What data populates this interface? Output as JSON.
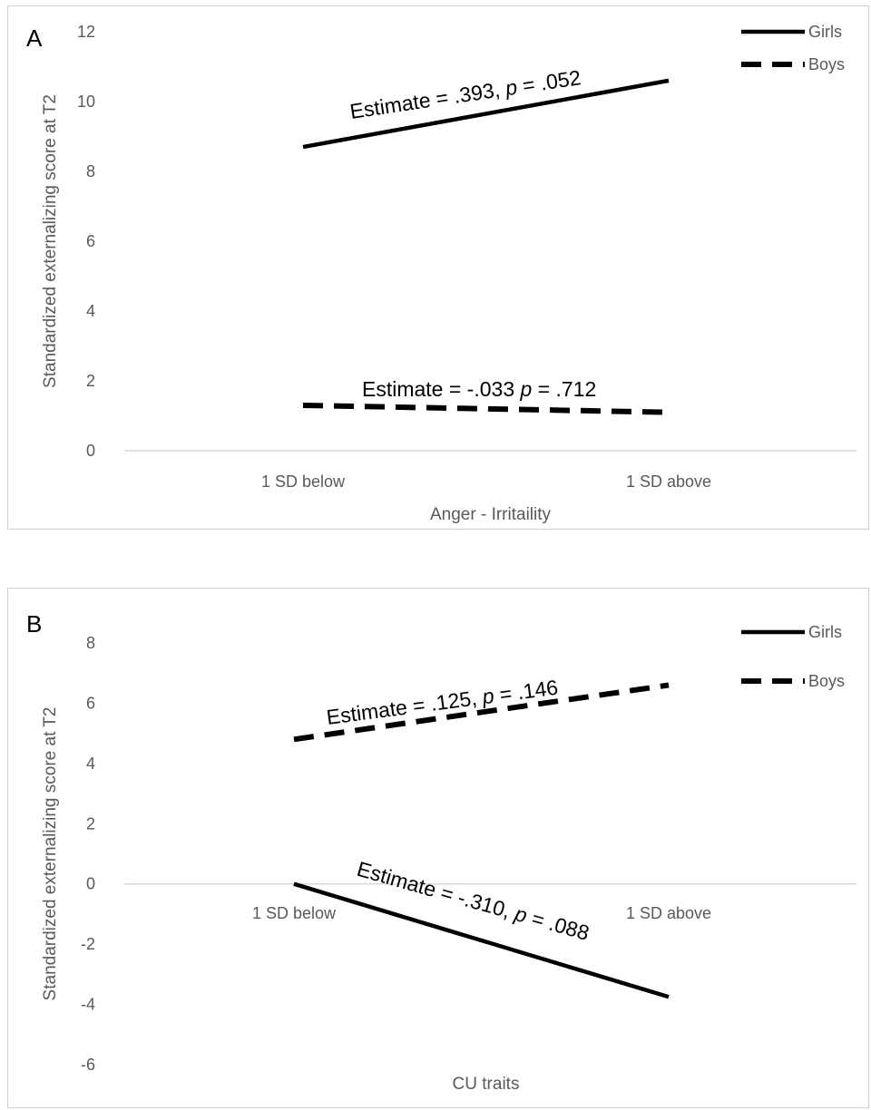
{
  "chart_data": [
    {
      "type": "line",
      "panel_label": "A",
      "categories": [
        "1 SD below",
        "1 SD above"
      ],
      "xlabel": "Anger - Irritaility",
      "ylabel": "Standardized externalizing score at T2",
      "ylim": [
        0,
        12
      ],
      "yticks": [
        0,
        2,
        4,
        6,
        8,
        10,
        12
      ],
      "grid": false,
      "legend_position": "top-right",
      "series": [
        {
          "name": "Girls",
          "style": "solid",
          "values": [
            8.7,
            10.6
          ],
          "annotation": {
            "pre": "Estimate = .393, ",
            "p": "p",
            "post": " = .052"
          }
        },
        {
          "name": "Boys",
          "style": "dashed",
          "values": [
            1.3,
            1.1
          ],
          "annotation": {
            "pre": "Estimate = -.033 ",
            "p": "p",
            "post": " = .712"
          }
        }
      ]
    },
    {
      "type": "line",
      "panel_label": "B",
      "categories": [
        "1 SD below",
        "1 SD above"
      ],
      "xlabel": "CU traits",
      "ylabel": "Standardized externalizing score at T2",
      "ylim": [
        -6,
        8
      ],
      "yticks": [
        -6,
        -4,
        -2,
        0,
        2,
        4,
        6,
        8
      ],
      "grid": false,
      "legend_position": "top-right",
      "series": [
        {
          "name": "Girls",
          "style": "solid",
          "values": [
            0.0,
            -3.75
          ],
          "annotation": {
            "pre": "Estimate = -.310, ",
            "p": "p",
            "post": " = .088"
          }
        },
        {
          "name": "Boys",
          "style": "dashed",
          "values": [
            4.8,
            6.6
          ],
          "annotation": {
            "pre": "Estimate = .125, ",
            "p": "p",
            "post": " = .146"
          }
        }
      ]
    }
  ],
  "colors": {
    "line": "#000000",
    "axis": "#d9d9d9",
    "text": "#595959",
    "border": "#d0d0d0"
  }
}
